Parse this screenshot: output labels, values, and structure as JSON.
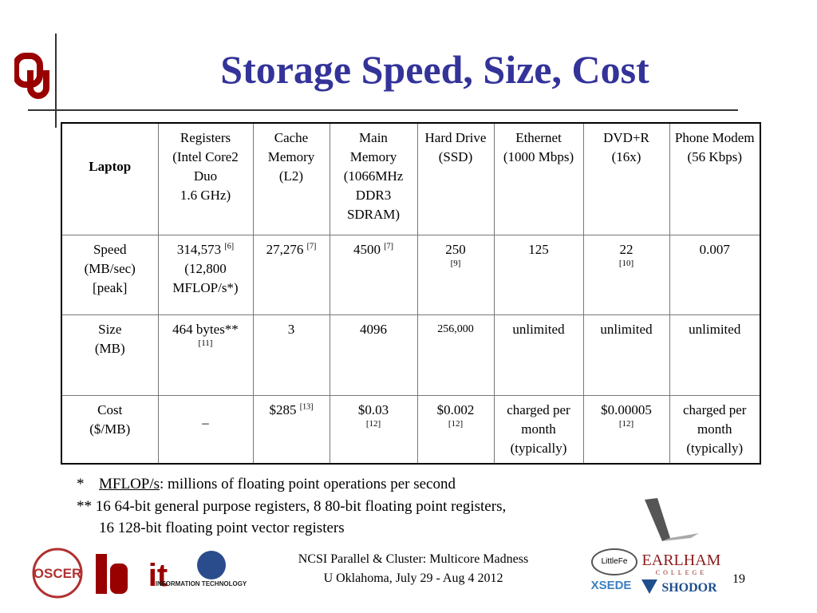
{
  "title": "Storage Speed, Size, Cost",
  "table": {
    "corner": "Laptop",
    "header": [
      {
        "lines": [
          "Registers",
          "(Intel Core2 Duo",
          "1.6 GHz)"
        ]
      },
      {
        "lines": [
          "Cache",
          "Memory",
          "(L2)"
        ]
      },
      {
        "lines": [
          "Main",
          "Memory",
          "(1066MHz DDR3 SDRAM)"
        ]
      },
      {
        "lines": [
          "Hard Drive",
          "(SSD)"
        ]
      },
      {
        "lines": [
          "Ethernet",
          "(1000 Mbps)"
        ]
      },
      {
        "lines": [
          "DVD+R",
          "(16x)"
        ]
      },
      {
        "lines": [
          "Phone Modem",
          "(56 Kbps)"
        ]
      }
    ],
    "rows": [
      {
        "label": [
          "Speed",
          "(MB/sec)",
          "[peak]"
        ],
        "cells": [
          {
            "lines": [
              "314,573",
              "(12,800 MFLOP/s*)"
            ],
            "sup": "[6]"
          },
          {
            "lines": [
              "27,276"
            ],
            "sup": "[7]"
          },
          {
            "lines": [
              "4500"
            ],
            "sup": "[7]"
          },
          {
            "lines": [
              "250"
            ],
            "note": "[9]"
          },
          {
            "lines": [
              "125"
            ]
          },
          {
            "lines": [
              "22"
            ],
            "note": "[10]"
          },
          {
            "lines": [
              "0.007"
            ]
          }
        ]
      },
      {
        "label": [
          "Size",
          "(MB)"
        ],
        "cells": [
          {
            "lines": [
              "464 bytes**"
            ],
            "note": "[11]"
          },
          {
            "lines": [
              "3"
            ]
          },
          {
            "lines": [
              "4096"
            ]
          },
          {
            "lines": [
              "256,000"
            ],
            "small": true
          },
          {
            "lines": [
              "unlimited"
            ]
          },
          {
            "lines": [
              "unlimited"
            ]
          },
          {
            "lines": [
              "unlimited"
            ]
          }
        ]
      },
      {
        "label": [
          "Cost",
          "($/MB)"
        ],
        "cells": [
          {
            "lines": [
              "–"
            ],
            "middle": true
          },
          {
            "lines": [
              "$285"
            ],
            "sup": "[13]"
          },
          {
            "lines": [
              "$0.03"
            ],
            "note": "[12]"
          },
          {
            "lines": [
              "$0.002"
            ],
            "note": "[12]"
          },
          {
            "lines": [
              "charged per month",
              "(typically)"
            ]
          },
          {
            "lines": [
              "$0.00005"
            ],
            "note": "[12]"
          },
          {
            "lines": [
              "charged per month",
              "(typically)"
            ]
          }
        ]
      }
    ]
  },
  "footnotes": {
    "star": "*",
    "term": "MFLOP/s",
    "definition": ": millions of floating point operations per second",
    "line2": "** 16 64-bit general purpose registers, 8 80-bit floating point registers,",
    "line3": "16 128-bit floating point vector registers"
  },
  "footer": {
    "line1": "NCSI Parallel & Cluster: Multicore Madness",
    "line2": "U Oklahoma, July 29 - Aug 4 2012",
    "page": "19"
  },
  "logos": {
    "oscer": "OSCER",
    "it": "it",
    "itinfo": "INFORMATION TECHNOLOGY",
    "littlefe": "LittleFe",
    "earlham": "EARLHAM",
    "college": "COLLEGE",
    "xsede": "XSEDE",
    "shodor": "SHODOR"
  }
}
